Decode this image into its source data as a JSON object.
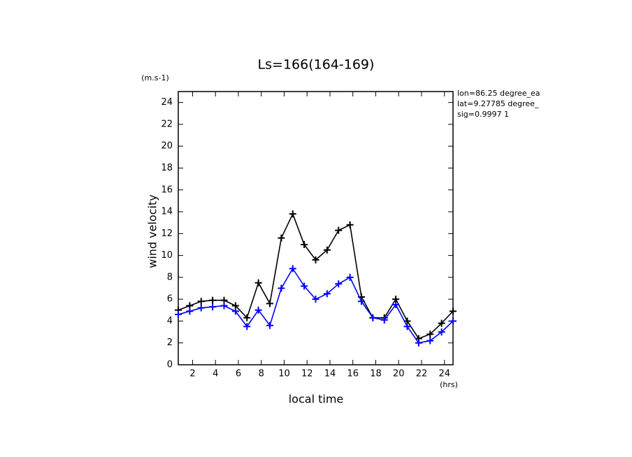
{
  "chart_data": {
    "type": "line",
    "title": "Ls=166(164-169)",
    "y_unit": "(m.s-1)",
    "ylabel": "wind velocity",
    "xlabel": "local time",
    "x_unit": "(hrs)",
    "annotations": [
      "lon=86.25 degree_ea",
      "lat=9.27785 degree_",
      "sig=0.9997 1"
    ],
    "x": [
      0.75,
      1.75,
      2.75,
      3.75,
      4.75,
      5.75,
      6.75,
      7.75,
      8.75,
      9.75,
      10.75,
      11.75,
      12.75,
      13.75,
      14.75,
      15.75,
      16.75,
      17.75,
      18.75,
      19.75,
      20.75,
      21.75,
      22.75,
      23.75,
      24.75
    ],
    "series": [
      {
        "color": "#000000",
        "values": [
          5.0,
          5.4,
          5.8,
          5.9,
          5.9,
          5.4,
          4.3,
          7.5,
          5.6,
          11.6,
          13.8,
          11.0,
          9.6,
          10.5,
          12.3,
          12.8,
          6.2,
          4.3,
          4.3,
          6.0,
          4.0,
          2.4,
          2.8,
          3.8,
          4.9
        ]
      },
      {
        "color": "#0000ff",
        "values": [
          4.6,
          4.9,
          5.2,
          5.3,
          5.4,
          4.9,
          3.5,
          5.0,
          3.6,
          7.0,
          8.8,
          7.2,
          6.0,
          6.5,
          7.4,
          8.0,
          5.8,
          4.3,
          4.1,
          5.5,
          3.5,
          2.0,
          2.2,
          3.0,
          4.0
        ]
      }
    ],
    "xlim": [
      0.75,
      24.75
    ],
    "xticks": [
      2,
      4,
      6,
      8,
      10,
      12,
      14,
      16,
      18,
      20,
      22,
      24
    ],
    "ylim": [
      0,
      25
    ],
    "yticks": [
      0,
      2,
      4,
      6,
      8,
      10,
      12,
      14,
      16,
      18,
      20,
      22,
      24
    ],
    "markers": "plus"
  }
}
